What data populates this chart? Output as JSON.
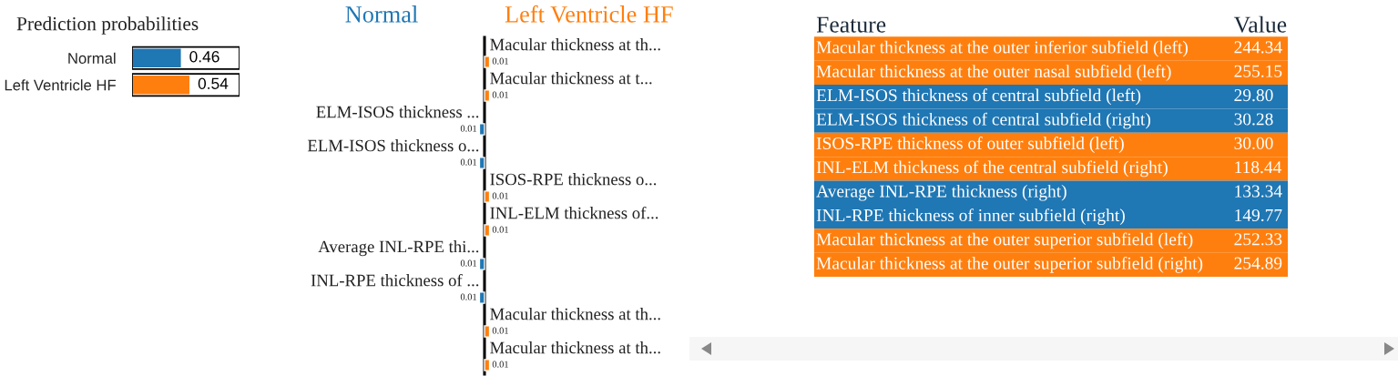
{
  "chart_data": [
    {
      "type": "bar",
      "orientation": "horizontal",
      "title": "Prediction probabilities",
      "categories": [
        "Normal",
        "Left Ventricle HF"
      ],
      "values": [
        0.46,
        0.54
      ],
      "colors": [
        "#1f77b4",
        "#ff7f0e"
      ],
      "xlim": [
        0,
        1
      ],
      "data_labels": true,
      "tick_labels": "y"
    },
    {
      "type": "bar",
      "orientation": "horizontal",
      "tick_labels": false,
      "categories": [
        "Macular thickness at th...",
        "Macular thickness at t...",
        "ELM-ISOS thickness ...",
        "ELM-ISOS thickness o...",
        "ISOS-RPE thickness o...",
        "INL-ELM thickness of...",
        "Average INL-RPE thi...",
        "INL-RPE thickness of ...",
        "Macular thickness at th...",
        "Macular thickness at th..."
      ],
      "series": [
        {
          "name": "Normal",
          "color": "#1f77b4",
          "values": [
            null,
            null,
            -0.01,
            -0.01,
            null,
            null,
            -0.01,
            -0.01,
            null,
            null
          ]
        },
        {
          "name": "Left Ventricle HF",
          "color": "#ff7f0e",
          "values": [
            0.01,
            0.01,
            null,
            null,
            0.01,
            0.01,
            null,
            null,
            0.01,
            0.01
          ],
          "value_labels": [
            "0.01",
            "0.01",
            null,
            null,
            "0.01",
            "0.01",
            null,
            null,
            "0.01",
            "0.01"
          ]
        }
      ],
      "annotations": [
        "0.01",
        "0.01",
        "0.01",
        "0.01"
      ]
    },
    {
      "type": "other",
      "annotations": [
        "Feature",
        "Value"
      ],
      "categories": [
        "Macular thickness at the outer inferior subfield (left)",
        "Macular thickness at the outer nasal subfield (left)",
        "ELM-ISOS thickness of central subfield (left)",
        "ELM-ISOS thickness of central subfield (right)",
        "ISOS-RPE thickness of outer subfield (left)",
        "INL-ELM thickness of the central subfield (right)",
        "Average INL-RPE thickness (right)",
        "INL-RPE thickness of inner subfield (right)",
        "Macular thickness at the outer superior subfield (left)",
        "Macular thickness at the outer superior subfield (right)"
      ],
      "values": [
        244.34,
        255.15,
        29.8,
        30.28,
        30.0,
        118.44,
        133.34,
        149.77,
        252.33,
        254.89
      ],
      "value_labels": [
        "244.34",
        "255.15",
        "29.80",
        "30.28",
        "30.00",
        "118.44",
        "133.34",
        "149.77",
        "252.33",
        "254.89"
      ],
      "colors": [
        "#ff7f0e",
        "#ff7f0e",
        "#1f77b4",
        "#1f77b4",
        "#ff7f0e",
        "#ff7f0e",
        "#1f77b4",
        "#1f77b4",
        "#ff7f0e",
        "#ff7f0e"
      ]
    }
  ]
}
